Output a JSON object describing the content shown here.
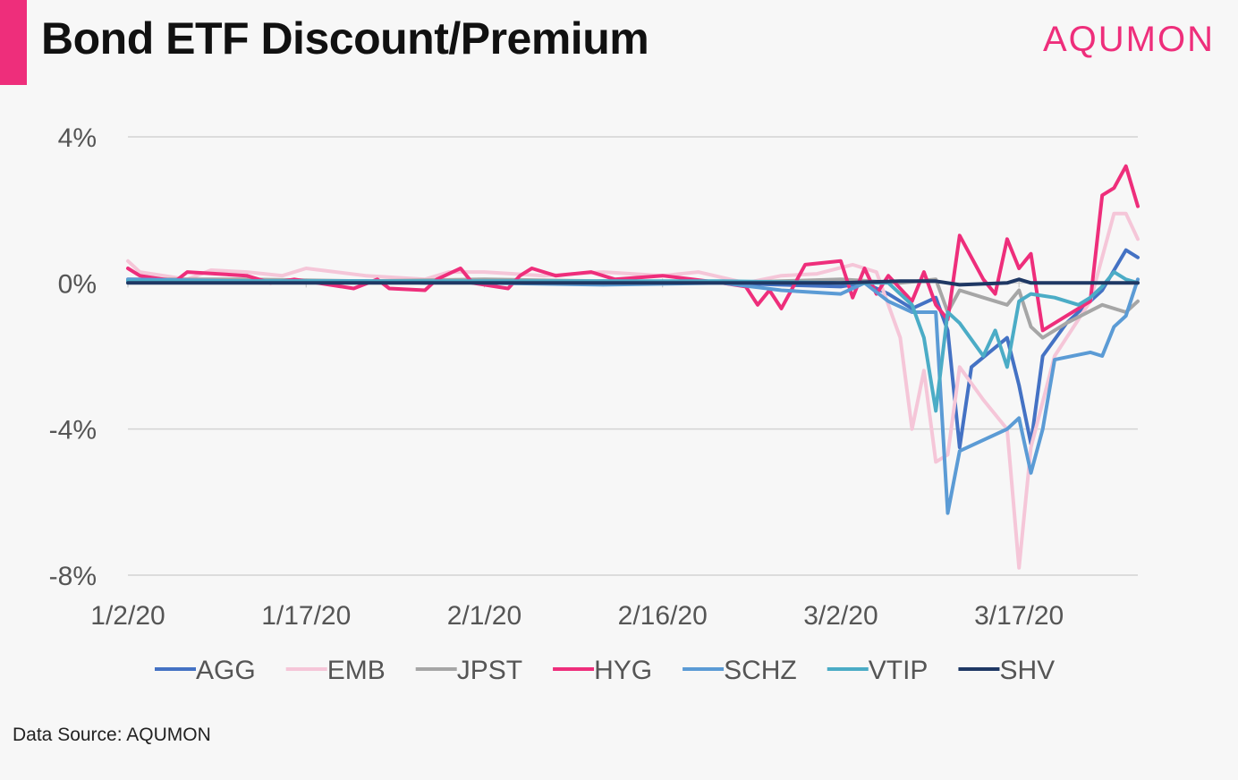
{
  "header": {
    "title": "Bond ETF Discount/Premium",
    "brand": "AQUMON"
  },
  "footer": {
    "source": "Data Source: AQUMON"
  },
  "chart_data": {
    "type": "line",
    "title": "Bond ETF Discount/Premium",
    "xlabel": "",
    "ylabel": "",
    "ylim": [
      -8,
      4
    ],
    "yticks": [
      4,
      0,
      -4,
      -8
    ],
    "ytick_labels": [
      "4%",
      "0%",
      "-4%",
      "-8%"
    ],
    "xticks": [
      0,
      15,
      30,
      45,
      60,
      75
    ],
    "xtick_labels": [
      "1/2/20",
      "1/17/20",
      "2/1/20",
      "2/16/20",
      "3/2/20",
      "3/17/20"
    ],
    "x_range": [
      0,
      85
    ],
    "x_unit": "days from 1/2/20",
    "grid": "horizontal",
    "legend_position": "bottom",
    "series": [
      {
        "name": "AGG",
        "color": "#4472c4",
        "points": [
          [
            0,
            0.05
          ],
          [
            5,
            0.05
          ],
          [
            10,
            0.05
          ],
          [
            15,
            0.05
          ],
          [
            20,
            0.05
          ],
          [
            25,
            0.0
          ],
          [
            30,
            0.05
          ],
          [
            35,
            0.0
          ],
          [
            40,
            0.05
          ],
          [
            45,
            0.0
          ],
          [
            50,
            0.0
          ],
          [
            55,
            -0.05
          ],
          [
            60,
            -0.1
          ],
          [
            62,
            0.0
          ],
          [
            64,
            -0.3
          ],
          [
            66,
            -0.7
          ],
          [
            68,
            -0.4
          ],
          [
            69,
            -1.3
          ],
          [
            70,
            -4.5
          ],
          [
            71,
            -2.3
          ],
          [
            74,
            -1.5
          ],
          [
            75,
            -2.8
          ],
          [
            76,
            -4.4
          ],
          [
            77,
            -2.0
          ],
          [
            79,
            -1.1
          ],
          [
            82,
            -0.2
          ],
          [
            84,
            0.9
          ],
          [
            85,
            0.7
          ]
        ]
      },
      {
        "name": "EMB",
        "color": "#f5c6d8",
        "points": [
          [
            0,
            0.6
          ],
          [
            1,
            0.3
          ],
          [
            5,
            0.1
          ],
          [
            7,
            0.35
          ],
          [
            10,
            0.3
          ],
          [
            13,
            0.2
          ],
          [
            15,
            0.4
          ],
          [
            20,
            0.2
          ],
          [
            25,
            0.1
          ],
          [
            27,
            0.3
          ],
          [
            30,
            0.3
          ],
          [
            35,
            0.2
          ],
          [
            40,
            0.3
          ],
          [
            45,
            0.2
          ],
          [
            48,
            0.3
          ],
          [
            52,
            0.0
          ],
          [
            55,
            0.2
          ],
          [
            58,
            0.25
          ],
          [
            61,
            0.5
          ],
          [
            63,
            0.3
          ],
          [
            65,
            -1.5
          ],
          [
            66,
            -4.0
          ],
          [
            67,
            -2.4
          ],
          [
            68,
            -4.9
          ],
          [
            69,
            -4.7
          ],
          [
            70,
            -2.3
          ],
          [
            72,
            -3.2
          ],
          [
            74,
            -4.0
          ],
          [
            75,
            -7.8
          ],
          [
            76,
            -4.5
          ],
          [
            78,
            -2.0
          ],
          [
            81,
            -0.5
          ],
          [
            83,
            1.9
          ],
          [
            84,
            1.9
          ],
          [
            85,
            1.2
          ]
        ]
      },
      {
        "name": "JPST",
        "color": "#a6a6a6",
        "points": [
          [
            0,
            0.1
          ],
          [
            10,
            0.1
          ],
          [
            20,
            0.05
          ],
          [
            30,
            0.1
          ],
          [
            40,
            0.05
          ],
          [
            50,
            0.0
          ],
          [
            60,
            0.1
          ],
          [
            65,
            0.0
          ],
          [
            68,
            0.1
          ],
          [
            69,
            -0.8
          ],
          [
            70,
            -0.2
          ],
          [
            72,
            -0.4
          ],
          [
            74,
            -0.6
          ],
          [
            75,
            -0.2
          ],
          [
            76,
            -1.2
          ],
          [
            77,
            -1.5
          ],
          [
            79,
            -1.1
          ],
          [
            82,
            -0.6
          ],
          [
            84,
            -0.8
          ],
          [
            85,
            -0.5
          ]
        ]
      },
      {
        "name": "HYG",
        "color": "#ee2e7b",
        "points": [
          [
            0,
            0.4
          ],
          [
            1,
            0.2
          ],
          [
            4,
            0.05
          ],
          [
            5,
            0.3
          ],
          [
            10,
            0.2
          ],
          [
            12,
            0.0
          ],
          [
            14,
            0.1
          ],
          [
            15,
            0.05
          ],
          [
            19,
            -0.15
          ],
          [
            21,
            0.1
          ],
          [
            22,
            -0.15
          ],
          [
            25,
            -0.2
          ],
          [
            26,
            0.1
          ],
          [
            28,
            0.4
          ],
          [
            29,
            0.0
          ],
          [
            32,
            -0.15
          ],
          [
            33,
            0.2
          ],
          [
            34,
            0.4
          ],
          [
            36,
            0.2
          ],
          [
            39,
            0.3
          ],
          [
            41,
            0.1
          ],
          [
            45,
            0.2
          ],
          [
            50,
            0.0
          ],
          [
            52,
            -0.1
          ],
          [
            53,
            -0.6
          ],
          [
            54,
            -0.2
          ],
          [
            55,
            -0.7
          ],
          [
            57,
            0.5
          ],
          [
            60,
            0.6
          ],
          [
            61,
            -0.4
          ],
          [
            62,
            0.4
          ],
          [
            63,
            -0.3
          ],
          [
            64,
            0.2
          ],
          [
            66,
            -0.5
          ],
          [
            67,
            0.3
          ],
          [
            68,
            -0.6
          ],
          [
            69,
            -1.0
          ],
          [
            70,
            1.3
          ],
          [
            72,
            0.1
          ],
          [
            73,
            -0.3
          ],
          [
            74,
            1.2
          ],
          [
            75,
            0.4
          ],
          [
            76,
            0.8
          ],
          [
            77,
            -1.3
          ],
          [
            79,
            -0.9
          ],
          [
            81,
            -0.5
          ],
          [
            82,
            2.4
          ],
          [
            83,
            2.6
          ],
          [
            84,
            3.2
          ],
          [
            85,
            2.1
          ]
        ]
      },
      {
        "name": "SCHZ",
        "color": "#5b9bd5",
        "points": [
          [
            0,
            0.1
          ],
          [
            10,
            0.05
          ],
          [
            20,
            0.05
          ],
          [
            30,
            0.0
          ],
          [
            40,
            -0.05
          ],
          [
            50,
            0.0
          ],
          [
            55,
            -0.2
          ],
          [
            60,
            -0.3
          ],
          [
            62,
            0.0
          ],
          [
            64,
            -0.5
          ],
          [
            66,
            -0.8
          ],
          [
            68,
            -0.8
          ],
          [
            69,
            -6.3
          ],
          [
            70,
            -4.6
          ],
          [
            72,
            -4.3
          ],
          [
            74,
            -4.0
          ],
          [
            75,
            -3.7
          ],
          [
            76,
            -5.2
          ],
          [
            77,
            -4.0
          ],
          [
            78,
            -2.1
          ],
          [
            81,
            -1.9
          ],
          [
            82,
            -2.0
          ],
          [
            83,
            -1.2
          ],
          [
            84,
            -0.9
          ],
          [
            85,
            0.1
          ]
        ]
      },
      {
        "name": "VTIP",
        "color": "#4bacc6",
        "points": [
          [
            0,
            0.05
          ],
          [
            10,
            0.05
          ],
          [
            20,
            0.05
          ],
          [
            30,
            0.05
          ],
          [
            40,
            0.05
          ],
          [
            50,
            0.05
          ],
          [
            60,
            0.0
          ],
          [
            64,
            0.0
          ],
          [
            66,
            -0.6
          ],
          [
            67,
            -1.5
          ],
          [
            68,
            -3.5
          ],
          [
            69,
            -0.8
          ],
          [
            70,
            -1.1
          ],
          [
            72,
            -2.0
          ],
          [
            73,
            -1.3
          ],
          [
            74,
            -2.3
          ],
          [
            75,
            -0.5
          ],
          [
            76,
            -0.3
          ],
          [
            78,
            -0.4
          ],
          [
            80,
            -0.6
          ],
          [
            81,
            -0.4
          ],
          [
            82,
            -0.1
          ],
          [
            83,
            0.3
          ],
          [
            84,
            0.1
          ],
          [
            85,
            0.0
          ]
        ]
      },
      {
        "name": "SHV",
        "color": "#1f3864",
        "points": [
          [
            0,
            0.0
          ],
          [
            10,
            0.0
          ],
          [
            20,
            0.0
          ],
          [
            30,
            0.0
          ],
          [
            40,
            0.0
          ],
          [
            50,
            0.0
          ],
          [
            60,
            0.0
          ],
          [
            65,
            0.05
          ],
          [
            68,
            0.05
          ],
          [
            70,
            -0.05
          ],
          [
            74,
            0.0
          ],
          [
            75,
            0.1
          ],
          [
            76,
            0.0
          ],
          [
            80,
            0.0
          ],
          [
            85,
            0.0
          ]
        ]
      }
    ]
  }
}
